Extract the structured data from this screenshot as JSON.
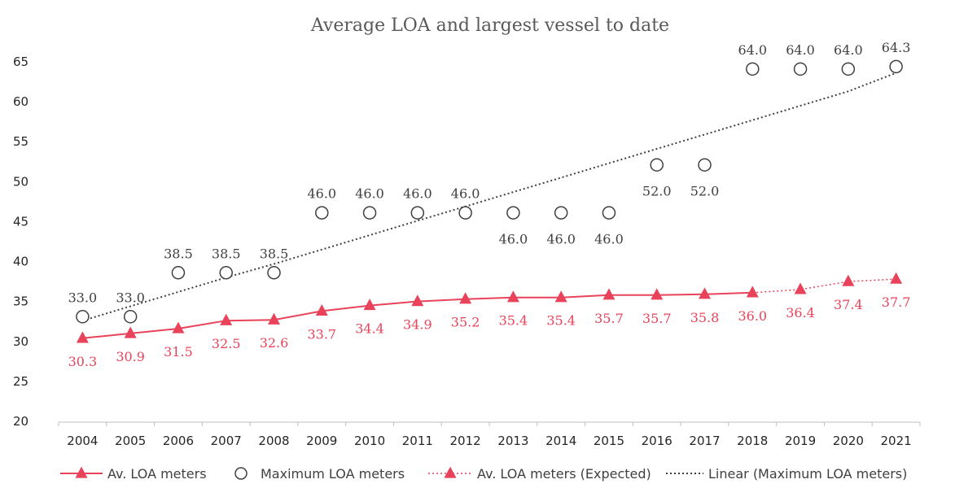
{
  "chart_data": {
    "type": "line",
    "title": "Average LOA and largest vessel to date",
    "xlabel": "",
    "ylabel": "",
    "ylim": [
      20,
      65
    ],
    "yticks": [
      20,
      25,
      30,
      35,
      40,
      45,
      50,
      55,
      60,
      65
    ],
    "categories": [
      "2004",
      "2005",
      "2006",
      "2007",
      "2008",
      "2009",
      "2010",
      "2011",
      "2012",
      "2013",
      "2014",
      "2015",
      "2016",
      "2017",
      "2018",
      "2019",
      "2020",
      "2021"
    ],
    "grid": false,
    "legend_position": "bottom",
    "series": [
      {
        "name": "Av. LOA meters",
        "style": "solid-line-triangle",
        "color": "#e8435a",
        "values": [
          30.3,
          30.9,
          31.5,
          32.5,
          32.6,
          33.7,
          34.4,
          34.9,
          35.2,
          35.4,
          35.4,
          35.7,
          35.7,
          35.8,
          36.0,
          null,
          null,
          null
        ],
        "labels": [
          "30.3",
          "30.9",
          "31.5",
          "32.5",
          "32.6",
          "33.7",
          "34.4",
          "34.9",
          "35.2",
          "35.4",
          "35.4",
          "35.7",
          "35.7",
          "35.8",
          "36.0",
          null,
          null,
          null
        ]
      },
      {
        "name": "Maximum LOA meters",
        "style": "open-circle",
        "color": "#404040",
        "values": [
          33.0,
          33.0,
          38.5,
          38.5,
          38.5,
          46.0,
          46.0,
          46.0,
          46.0,
          46.0,
          46.0,
          46.0,
          52.0,
          52.0,
          64.0,
          64.0,
          64.0,
          64.3
        ],
        "labels": [
          "33.0",
          "33.0",
          "38.5",
          "38.5",
          "38.5",
          "46.0",
          "46.0",
          "46.0",
          "46.0",
          "46.0",
          "46.0",
          "46.0",
          "52.0",
          "52.0",
          "64.0",
          "64.0",
          "64.0",
          "64.3"
        ],
        "label_side": [
          "above",
          "above",
          "above",
          "above",
          "above",
          "above",
          "above",
          "above",
          "above",
          "below",
          "below",
          "below",
          "below",
          "below",
          "above",
          "above",
          "above",
          "above"
        ]
      },
      {
        "name": "Av. LOA meters (Expected)",
        "style": "dotted-line-triangle",
        "color": "#e8435a",
        "values": [
          null,
          null,
          null,
          null,
          null,
          null,
          null,
          null,
          null,
          null,
          null,
          null,
          null,
          null,
          36.0,
          36.4,
          37.4,
          37.7
        ],
        "labels": [
          null,
          null,
          null,
          null,
          null,
          null,
          null,
          null,
          null,
          null,
          null,
          null,
          null,
          null,
          null,
          "36.4",
          "37.4",
          "37.7"
        ]
      },
      {
        "name": "Linear (Maximum LOA meters)",
        "style": "dotted-trendline",
        "color": "#404040",
        "values": [
          32.5,
          34.3,
          36.1,
          37.9,
          39.6,
          41.4,
          43.2,
          45.0,
          46.8,
          48.6,
          50.4,
          52.2,
          54.0,
          55.8,
          57.6,
          59.4,
          61.2,
          63.5
        ]
      }
    ]
  }
}
